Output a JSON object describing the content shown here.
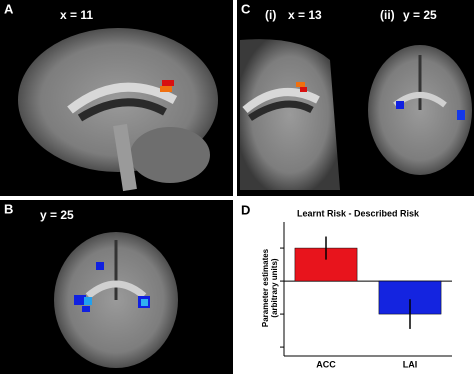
{
  "panels": {
    "a": {
      "label": "A",
      "coord": "x = 11"
    },
    "b": {
      "label": "B",
      "coord": "y = 25"
    },
    "c": {
      "label": "C",
      "sub": [
        {
          "label": "(i)",
          "coord": "x = 13"
        },
        {
          "label": "(ii)",
          "coord": "y = 25"
        }
      ]
    }
  },
  "chart_data": {
    "type": "bar",
    "panel_label": "D",
    "title": "Learnt Risk - Described Risk",
    "y_label": [
      "Parameter estimates",
      "(arbitrary units)"
    ],
    "categories": [
      "ACC",
      "LAI"
    ],
    "values": [
      1.0,
      -1.0
    ],
    "errors": [
      0.35,
      0.45
    ],
    "colors": [
      "#e8141c",
      "#1424e0"
    ],
    "ylim": [
      -2.27,
      1.79
    ],
    "yticks": [
      -2,
      -1,
      0,
      1
    ]
  }
}
